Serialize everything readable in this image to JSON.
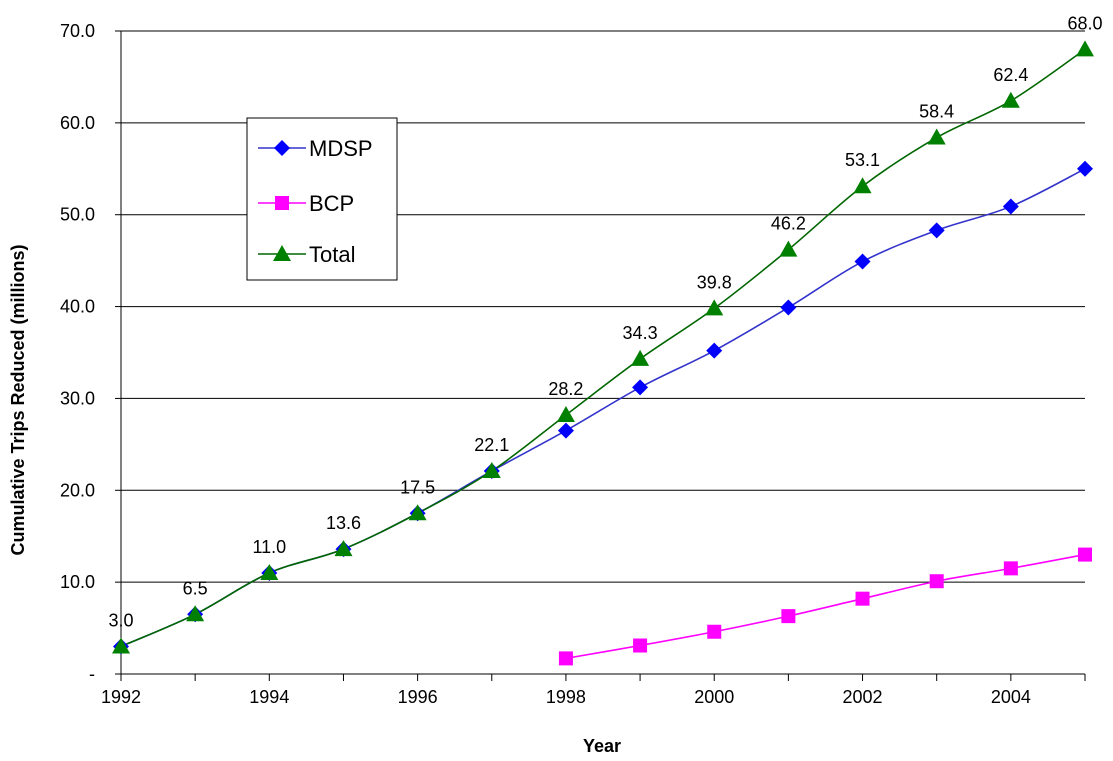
{
  "chart_data": {
    "type": "line",
    "title": "",
    "xlabel": "Year",
    "ylabel": "Cumulative Trips Reduced (millions)",
    "x": [
      1992,
      1993,
      1994,
      1995,
      1996,
      1997,
      1998,
      1999,
      2000,
      2001,
      2002,
      2003,
      2004,
      2005
    ],
    "xlim": [
      1992,
      2005
    ],
    "xticks": [
      1992,
      1994,
      1996,
      1998,
      2000,
      2002,
      2004
    ],
    "xtick_labels": [
      "1992",
      "1994",
      "1996",
      "1998",
      "2000",
      "2002",
      "2004"
    ],
    "ylim": [
      0,
      70
    ],
    "yticks": [
      0,
      10,
      20,
      30,
      40,
      50,
      60,
      70
    ],
    "ytick_labels": [
      "-",
      "10.0",
      "20.0",
      "30.0",
      "40.0",
      "50.0",
      "60.0",
      "70.0"
    ],
    "grid": "horizontal",
    "legend_position": "upper-left",
    "series": [
      {
        "name": "MDSP",
        "color": "#3333cc",
        "marker_color": "#0000ff",
        "marker": "diamond-icon",
        "values": [
          3.0,
          6.5,
          11.0,
          13.6,
          17.5,
          22.1,
          26.5,
          31.2,
          35.2,
          39.9,
          44.9,
          48.3,
          50.9,
          55.0
        ]
      },
      {
        "name": "BCP",
        "color": "#ff00ff",
        "marker_color": "#ff00ff",
        "marker": "square-icon",
        "values": [
          null,
          null,
          null,
          null,
          null,
          null,
          1.7,
          3.1,
          4.6,
          6.3,
          8.2,
          10.1,
          11.5,
          13.0
        ]
      },
      {
        "name": "Total",
        "color": "#006600",
        "marker_color": "#008000",
        "marker": "triangle-icon",
        "values": [
          3.0,
          6.5,
          11.0,
          13.6,
          17.5,
          22.1,
          28.2,
          34.3,
          39.8,
          46.2,
          53.1,
          58.4,
          62.4,
          68.0
        ]
      }
    ],
    "data_labels": [
      "3.0",
      "6.5",
      "11.0",
      "13.6",
      "17.5",
      "22.1",
      "28.2",
      "34.3",
      "39.8",
      "46.2",
      "53.1",
      "58.4",
      "62.4",
      "68.0"
    ]
  }
}
